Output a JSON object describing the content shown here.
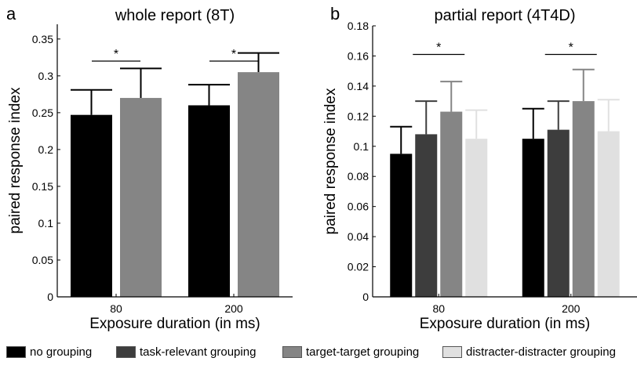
{
  "legend": [
    {
      "label": "no grouping",
      "color": "#000000"
    },
    {
      "label": "task-relevant grouping",
      "color": "#3d3d3d"
    },
    {
      "label": "target-target grouping",
      "color": "#858585"
    },
    {
      "label": "distracter-distracter grouping",
      "color": "#e0e0e0"
    }
  ],
  "chart_data": [
    {
      "type": "bar",
      "panel_label": "a",
      "title": "whole report (8T)",
      "xlabel": "Exposure duration (in ms)",
      "ylabel": "paired response index",
      "categories": [
        "80",
        "200"
      ],
      "ylim": [
        0,
        0.37
      ],
      "yticks": [
        0,
        0.05,
        0.1,
        0.15,
        0.2,
        0.25,
        0.3,
        0.35
      ],
      "ytick_labels": [
        "0",
        "0.05",
        "0.1",
        "0.15",
        "0.2",
        "0.25",
        "0.3",
        "0.35"
      ],
      "series": [
        {
          "name": "no grouping",
          "color": "#000000",
          "values": [
            0.247,
            0.26
          ],
          "errors": [
            0.034,
            0.028
          ]
        },
        {
          "name": "target-target grouping",
          "color": "#858585",
          "values": [
            0.27,
            0.305
          ],
          "errors": [
            0.04,
            0.026
          ]
        }
      ],
      "significance": [
        {
          "category": "80",
          "label": "*",
          "y": 0.32
        },
        {
          "category": "200",
          "label": "*",
          "y": 0.32
        }
      ]
    },
    {
      "type": "bar",
      "panel_label": "b",
      "title": "partial report (4T4D)",
      "xlabel": "Exposure duration (in ms)",
      "ylabel": "paired response index",
      "categories": [
        "80",
        "200"
      ],
      "ylim": [
        0,
        0.18
      ],
      "yticks": [
        0,
        0.02,
        0.04,
        0.06,
        0.08,
        0.1,
        0.12,
        0.14,
        0.16,
        0.18
      ],
      "ytick_labels": [
        "0",
        "0.02",
        "0.04",
        "0.06",
        "0.08",
        "0.1",
        "0.12",
        "0.14",
        "0.16",
        "0.18"
      ],
      "series": [
        {
          "name": "no grouping",
          "color": "#000000",
          "values": [
            0.095,
            0.105
          ],
          "errors": [
            0.018,
            0.02
          ]
        },
        {
          "name": "task-relevant grouping",
          "color": "#3d3d3d",
          "values": [
            0.108,
            0.111
          ],
          "errors": [
            0.022,
            0.019
          ]
        },
        {
          "name": "target-target grouping",
          "color": "#858585",
          "values": [
            0.123,
            0.13
          ],
          "errors": [
            0.02,
            0.021
          ]
        },
        {
          "name": "distracter-distracter grouping",
          "color": "#e0e0e0",
          "values": [
            0.105,
            0.11
          ],
          "errors": [
            0.019,
            0.021
          ]
        }
      ],
      "significance": [
        {
          "category": "80",
          "label": "*",
          "y": 0.161
        },
        {
          "category": "200",
          "label": "*",
          "y": 0.161
        }
      ]
    }
  ]
}
